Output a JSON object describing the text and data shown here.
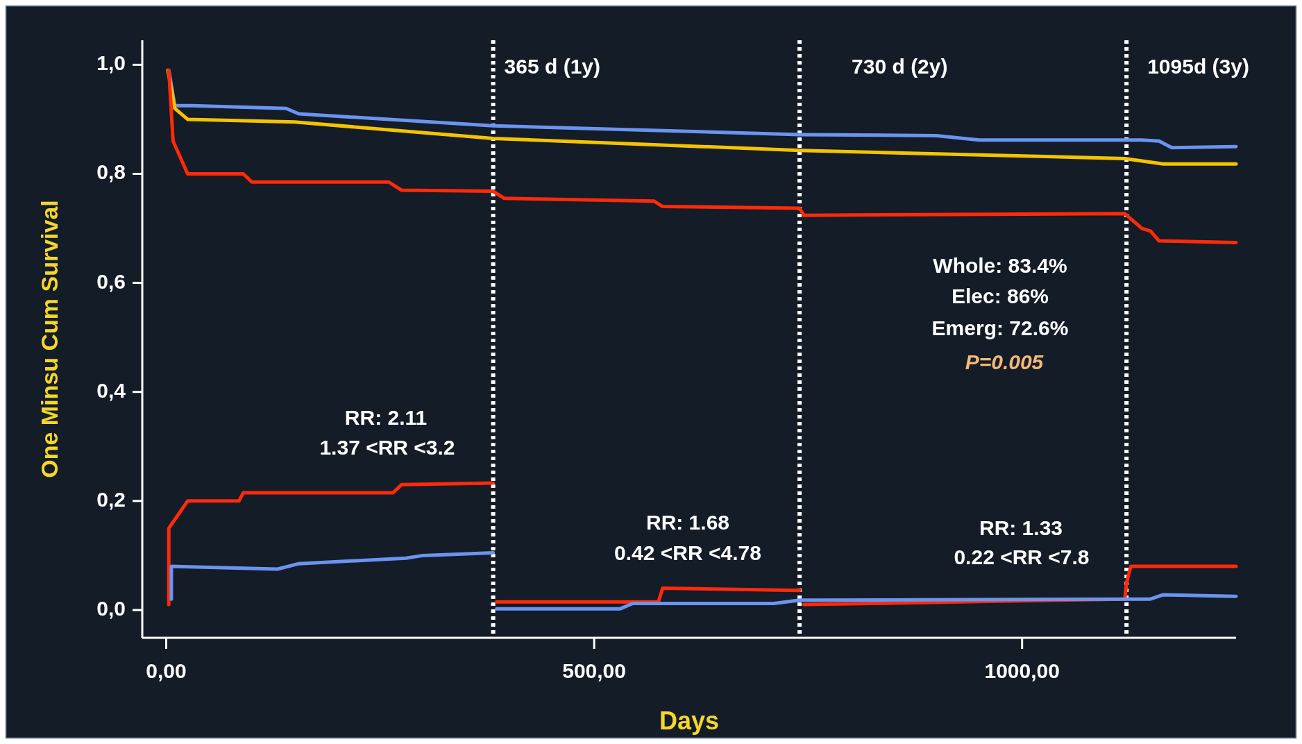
{
  "chart_data": {
    "type": "line",
    "xlabel": "Days",
    "ylabel": "One Minsu Cum Survival",
    "xlim": [
      -28,
      1250
    ],
    "ylim": [
      -0.051,
      1.045
    ],
    "xticks": [
      {
        "value": 0,
        "label": "0,00"
      },
      {
        "value": 500,
        "label": "500,00"
      },
      {
        "value": 1000,
        "label": "1000,00"
      }
    ],
    "yticks": [
      {
        "value": 0,
        "label": "0,0"
      },
      {
        "value": 0.2,
        "label": "0,2"
      },
      {
        "value": 0.4,
        "label": "0,4"
      },
      {
        "value": 0.6,
        "label": "0,6"
      },
      {
        "value": 0.8,
        "label": "0,8"
      },
      {
        "value": 1,
        "label": "1,0"
      }
    ],
    "grid": false,
    "marker": "none",
    "line_style": "solid",
    "ref_lines": [
      {
        "axis": "x",
        "value": 382,
        "label": "365 d (1y)",
        "color": "#ffffff",
        "line_style": "dotted"
      },
      {
        "axis": "x",
        "value": 740,
        "label": "730 d (2y)",
        "color": "#ffffff",
        "line_style": "dotted"
      },
      {
        "axis": "x",
        "value": 1122,
        "label": "1095d (3y)",
        "color": "#ffffff",
        "line_style": "dotted"
      }
    ],
    "annotations": [
      "RR: 2.11",
      "1.37 <RR <3.2",
      "RR: 1.68",
      "0.42 <RR <4.78",
      "RR: 1.33",
      "0.22 <RR <7.8",
      "Whole: 83.4%",
      "Elec: 86%",
      "Emerg: 72.6%",
      "P=0.005"
    ],
    "series": [
      {
        "color": "#6b94f0",
        "x": [
          3,
          10,
          30,
          140,
          155,
          382,
          740,
          900,
          950,
          1140,
          1160,
          1175,
          1250
        ],
        "values": [
          0.99,
          0.925,
          0.925,
          0.92,
          0.91,
          0.888,
          0.872,
          0.87,
          0.862,
          0.862,
          0.86,
          0.848,
          0.85
        ]
      },
      {
        "color": "#f5c400",
        "x": [
          2,
          10,
          25,
          150,
          382,
          740,
          1120,
          1165,
          1250
        ],
        "values": [
          0.99,
          0.92,
          0.9,
          0.895,
          0.865,
          0.843,
          0.828,
          0.818,
          0.818
        ]
      },
      {
        "color": "#ff2a0a",
        "x": [
          3,
          8,
          25,
          90,
          100,
          260,
          275,
          382,
          395,
          570,
          580,
          740,
          745,
          1120,
          1140,
          1150,
          1160,
          1250
        ],
        "values": [
          0.99,
          0.86,
          0.8,
          0.8,
          0.785,
          0.785,
          0.77,
          0.768,
          0.755,
          0.75,
          0.74,
          0.737,
          0.724,
          0.727,
          0.7,
          0.695,
          0.677,
          0.674
        ]
      },
      {
        "color": "#ff2a0a",
        "x": [
          3,
          3,
          25,
          85,
          90,
          265,
          275,
          382,
          null,
          386,
          575,
          580,
          740,
          null,
          745,
          1120,
          1122,
          1127,
          1250
        ],
        "values": [
          0.01,
          0.15,
          0.2,
          0.2,
          0.215,
          0.215,
          0.23,
          0.233,
          null,
          0.015,
          0.015,
          0.04,
          0.036,
          null,
          0.01,
          0.02,
          0.05,
          0.08,
          0.08
        ]
      },
      {
        "color": "#6b94f0",
        "x": [
          6,
          6,
          130,
          155,
          280,
          300,
          382,
          null,
          386,
          530,
          545,
          710,
          740,
          1125,
          1150,
          1165,
          1250
        ],
        "values": [
          0.02,
          0.08,
          0.075,
          0.085,
          0.095,
          0.1,
          0.105,
          null,
          0.002,
          0.002,
          0.012,
          0.012,
          0.018,
          0.02,
          0.02,
          0.028,
          0.025
        ]
      }
    ]
  }
}
